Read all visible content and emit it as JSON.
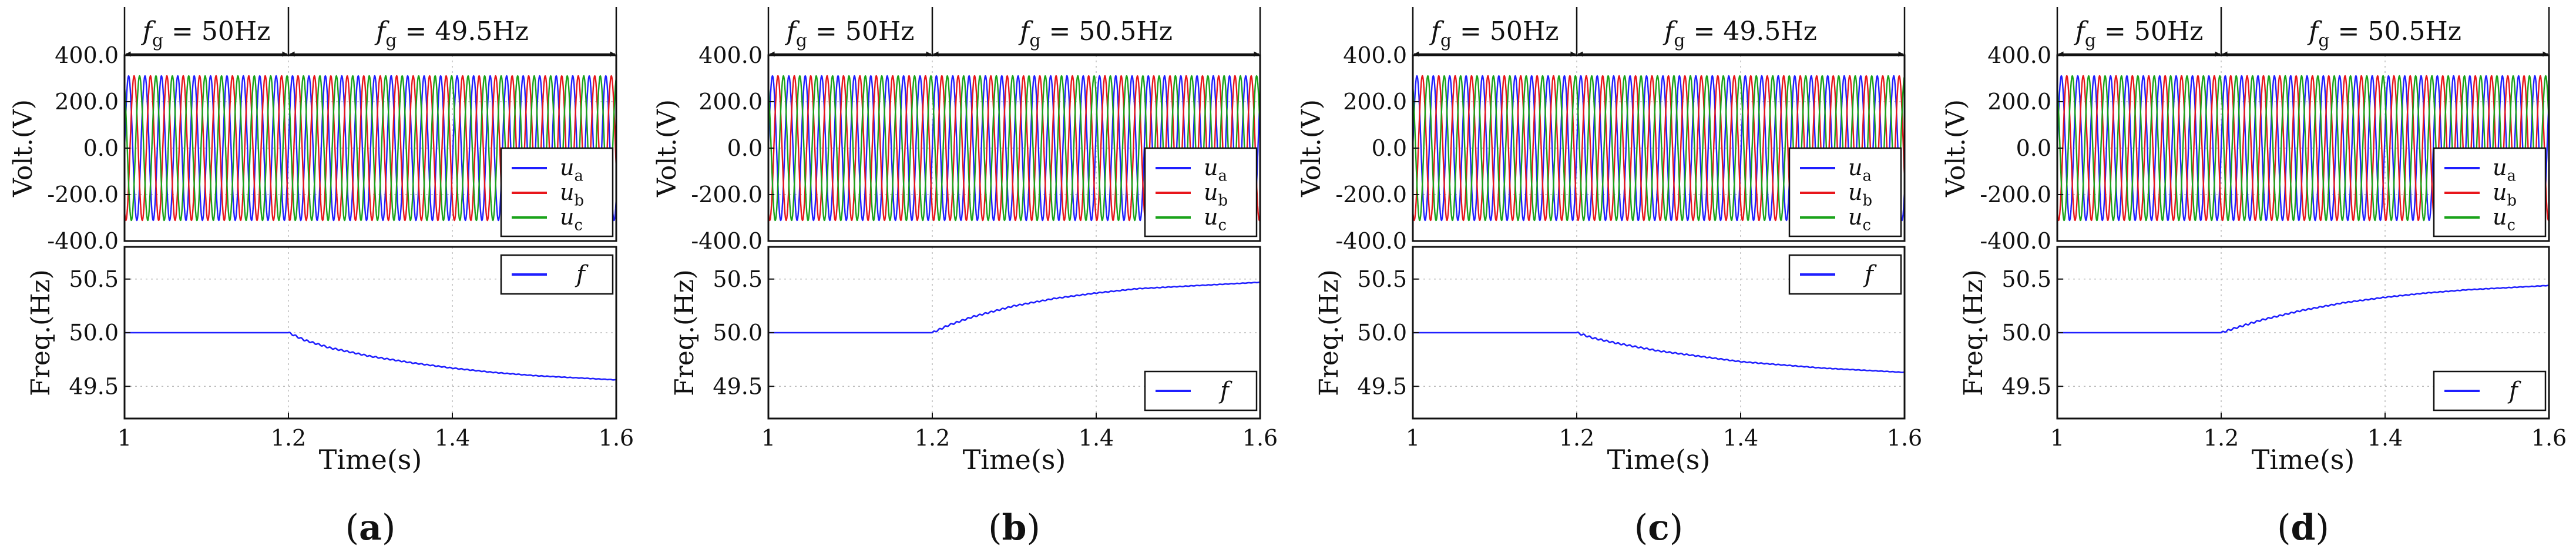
{
  "chart_data": [
    {
      "panel_label": "(a)",
      "type": "line",
      "freq_annotations": [
        {
          "prefix": "f",
          "sub": "g",
          "suffix": " = 50Hz"
        },
        {
          "prefix": "f",
          "sub": "g",
          "suffix": " = 49.5Hz"
        }
      ],
      "step_time": 1.2,
      "target_freq": 49.5,
      "voltage": {
        "ylabel": "Volt.(V)",
        "ylim": [
          -400,
          400
        ],
        "yticks": [
          400,
          200,
          0,
          -200,
          -400
        ],
        "ytick_labels": [
          "400.0",
          "200.0",
          "0.0",
          "-200.0",
          "-400.0"
        ],
        "amplitude": 311,
        "legend_position": "lower-right",
        "series": [
          {
            "name": "u",
            "sub": "a",
            "color": "#1f1fff",
            "phase_deg": 0
          },
          {
            "name": "u",
            "sub": "b",
            "color": "#e8161b",
            "phase_deg": -120
          },
          {
            "name": "u",
            "sub": "c",
            "color": "#1aa31a",
            "phase_deg": 120
          }
        ]
      },
      "frequency": {
        "ylabel": "Freq.(Hz)",
        "ylim": [
          49.2,
          50.8
        ],
        "yticks": [
          50.5,
          50.0,
          49.5
        ],
        "ytick_labels": [
          "50.5",
          "50.0",
          "49.5"
        ],
        "legend_position": "upper-right",
        "series": [
          {
            "name": "f",
            "color": "#1f1fff",
            "x": [
              1.0,
              1.2,
              1.22,
              1.25,
              1.3,
              1.35,
              1.4,
              1.45,
              1.5,
              1.55,
              1.6
            ],
            "y": [
              50.0,
              50.0,
              49.93,
              49.86,
              49.78,
              49.72,
              49.67,
              49.63,
              49.6,
              49.58,
              49.56
            ]
          }
        ]
      },
      "xlabel": "Time(s)",
      "xlim": [
        1.0,
        1.6
      ],
      "xticks": [
        1.0,
        1.2,
        1.4,
        1.6
      ],
      "xtick_labels": [
        "1",
        "1.2",
        "1.4",
        "1.6"
      ],
      "grid": true
    },
    {
      "panel_label": "(b)",
      "type": "line",
      "freq_annotations": [
        {
          "prefix": "f",
          "sub": "g",
          "suffix": " = 50Hz"
        },
        {
          "prefix": "f",
          "sub": "g",
          "suffix": " = 50.5Hz"
        }
      ],
      "step_time": 1.2,
      "target_freq": 50.5,
      "voltage": {
        "ylabel": "Volt.(V)",
        "ylim": [
          -400,
          400
        ],
        "yticks": [
          400,
          200,
          0,
          -200,
          -400
        ],
        "ytick_labels": [
          "400.0",
          "200.0",
          "0.0",
          "-200.0",
          "-400.0"
        ],
        "amplitude": 311,
        "legend_position": "lower-right",
        "series": [
          {
            "name": "u",
            "sub": "a",
            "color": "#1f1fff",
            "phase_deg": 0
          },
          {
            "name": "u",
            "sub": "b",
            "color": "#e8161b",
            "phase_deg": -120
          },
          {
            "name": "u",
            "sub": "c",
            "color": "#1aa31a",
            "phase_deg": 120
          }
        ]
      },
      "frequency": {
        "ylabel": "Freq.(Hz)",
        "ylim": [
          49.2,
          50.8
        ],
        "yticks": [
          50.5,
          50.0,
          49.5
        ],
        "ytick_labels": [
          "50.5",
          "50.0",
          "49.5"
        ],
        "legend_position": "lower-right",
        "series": [
          {
            "name": "f",
            "color": "#1f1fff",
            "x": [
              1.0,
              1.2,
              1.22,
              1.25,
              1.3,
              1.35,
              1.4,
              1.45,
              1.5,
              1.55,
              1.6
            ],
            "y": [
              50.0,
              50.0,
              50.07,
              50.15,
              50.25,
              50.32,
              50.37,
              50.41,
              50.43,
              50.45,
              50.47
            ]
          }
        ]
      },
      "xlabel": "Time(s)",
      "xlim": [
        1.0,
        1.6
      ],
      "xticks": [
        1.0,
        1.2,
        1.4,
        1.6
      ],
      "xtick_labels": [
        "1",
        "1.2",
        "1.4",
        "1.6"
      ],
      "grid": true
    },
    {
      "panel_label": "(c)",
      "type": "line",
      "freq_annotations": [
        {
          "prefix": "f",
          "sub": "g",
          "suffix": " = 50Hz"
        },
        {
          "prefix": "f",
          "sub": "g",
          "suffix": " = 49.5Hz"
        }
      ],
      "step_time": 1.2,
      "target_freq": 49.5,
      "voltage": {
        "ylabel": "Volt.(V)",
        "ylim": [
          -400,
          400
        ],
        "yticks": [
          400,
          200,
          0,
          -200,
          -400
        ],
        "ytick_labels": [
          "400.0",
          "200.0",
          "0.0",
          "-200.0",
          "-400.0"
        ],
        "amplitude": 311,
        "legend_position": "lower-right",
        "series": [
          {
            "name": "u",
            "sub": "a",
            "color": "#1f1fff",
            "phase_deg": 0
          },
          {
            "name": "u",
            "sub": "b",
            "color": "#e8161b",
            "phase_deg": -120
          },
          {
            "name": "u",
            "sub": "c",
            "color": "#1aa31a",
            "phase_deg": 120
          }
        ]
      },
      "frequency": {
        "ylabel": "Freq.(Hz)",
        "ylim": [
          49.2,
          50.8
        ],
        "yticks": [
          50.5,
          50.0,
          49.5
        ],
        "ytick_labels": [
          "50.5",
          "50.0",
          "49.5"
        ],
        "legend_position": "upper-right",
        "series": [
          {
            "name": "f",
            "color": "#1f1fff",
            "x": [
              1.0,
              1.2,
              1.22,
              1.25,
              1.3,
              1.35,
              1.4,
              1.45,
              1.5,
              1.55,
              1.6
            ],
            "y": [
              50.0,
              50.0,
              49.95,
              49.9,
              49.83,
              49.78,
              49.73,
              49.7,
              49.67,
              49.65,
              49.63
            ]
          }
        ]
      },
      "xlabel": "Time(s)",
      "xlim": [
        1.0,
        1.6
      ],
      "xticks": [
        1.0,
        1.2,
        1.4,
        1.6
      ],
      "xtick_labels": [
        "1",
        "1.2",
        "1.4",
        "1.6"
      ],
      "grid": true
    },
    {
      "panel_label": "(d)",
      "type": "line",
      "freq_annotations": [
        {
          "prefix": "f",
          "sub": "g",
          "suffix": " = 50Hz"
        },
        {
          "prefix": "f",
          "sub": "g",
          "suffix": " = 50.5Hz"
        }
      ],
      "step_time": 1.2,
      "target_freq": 50.5,
      "voltage": {
        "ylabel": "Volt.(V)",
        "ylim": [
          -400,
          400
        ],
        "yticks": [
          400,
          200,
          0,
          -200,
          -400
        ],
        "ytick_labels": [
          "400.0",
          "200.0",
          "0.0",
          "-200.0",
          "-400.0"
        ],
        "amplitude": 311,
        "legend_position": "lower-right",
        "series": [
          {
            "name": "u",
            "sub": "a",
            "color": "#1f1fff",
            "phase_deg": 0
          },
          {
            "name": "u",
            "sub": "b",
            "color": "#e8161b",
            "phase_deg": -120
          },
          {
            "name": "u",
            "sub": "c",
            "color": "#1aa31a",
            "phase_deg": 120
          }
        ]
      },
      "frequency": {
        "ylabel": "Freq.(Hz)",
        "ylim": [
          49.2,
          50.8
        ],
        "yticks": [
          50.5,
          50.0,
          49.5
        ],
        "ytick_labels": [
          "50.5",
          "50.0",
          "49.5"
        ],
        "legend_position": "lower-right",
        "series": [
          {
            "name": "f",
            "color": "#1f1fff",
            "x": [
              1.0,
              1.2,
              1.22,
              1.25,
              1.3,
              1.35,
              1.4,
              1.45,
              1.5,
              1.55,
              1.6
            ],
            "y": [
              50.0,
              50.0,
              50.05,
              50.12,
              50.21,
              50.28,
              50.33,
              50.37,
              50.4,
              50.42,
              50.44
            ]
          }
        ]
      },
      "xlabel": "Time(s)",
      "xlim": [
        1.0,
        1.6
      ],
      "xticks": [
        1.0,
        1.2,
        1.4,
        1.6
      ],
      "xtick_labels": [
        "1",
        "1.2",
        "1.4",
        "1.6"
      ],
      "grid": true
    }
  ]
}
